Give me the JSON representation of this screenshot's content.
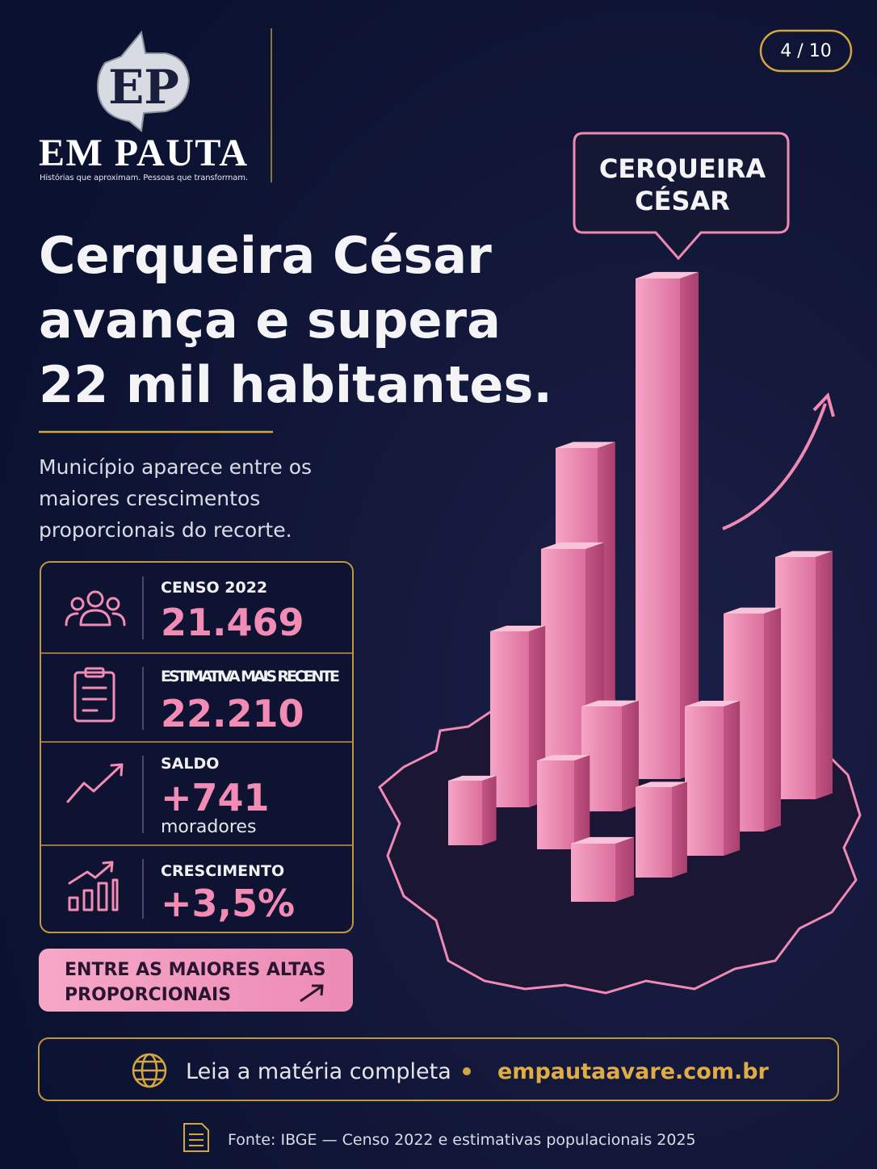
{
  "header": {
    "logo": {
      "brand": "EM PAUTA",
      "tagline": "Histórias que aproximam. Pessoas que transformam."
    },
    "page": "4 / 10"
  },
  "headline": {
    "lines": [
      "Cerqueira César",
      "avança e supera",
      "22 mil habitantes."
    ]
  },
  "subtitle": {
    "lines": [
      "Município aparece entre os",
      "maiores crescimentos",
      "proporcionais do recorte."
    ]
  },
  "callout": {
    "lines": [
      "CERQUEIRA",
      "CÉSAR"
    ]
  },
  "stats": [
    {
      "label": "CENSO 2022",
      "value": "21.469"
    },
    {
      "label": "ESTIMATIVA MAIS RECENTE",
      "value": "22.210"
    },
    {
      "label": "SALDO",
      "value": "+741",
      "note": "moradores"
    },
    {
      "label": "CRESCIMENTO",
      "value": "+3,5%"
    }
  ],
  "badge": {
    "lines": [
      "ENTRE AS MAIORES ALTAS",
      "PROPORCIONAIS"
    ]
  },
  "footer": {
    "cta": "Leia a matéria completa",
    "url": "empautaavare.com.br"
  },
  "source": "Fonte: IBGE — Censo 2022 e estimativas populacionais 2025"
}
